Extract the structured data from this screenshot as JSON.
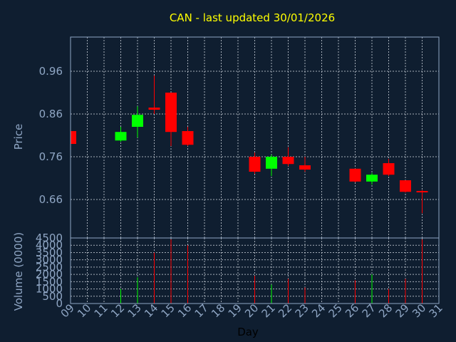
{
  "chart_data": [
    {
      "type": "candlestick",
      "title": "CAN - last updated 30/01/2026",
      "ylabel": "Price",
      "ylim": [
        0.57,
        1.04
      ],
      "yticks": [
        0.66,
        0.76,
        0.86,
        0.96
      ],
      "ytick_labels": [
        "0.66",
        "0.76",
        "0.86",
        "0.96"
      ],
      "grid": true,
      "colors": {
        "background": "#0f1e30",
        "title": "#ffff00",
        "axis": "#8fa6c4",
        "up": "#00ff00",
        "down": "#ff0000"
      },
      "candles": [
        {
          "day": 9,
          "open": 0.82,
          "close": 0.79,
          "high": 0.82,
          "low": 0.79
        },
        {
          "day": 12,
          "open": 0.798,
          "close": 0.818,
          "high": 0.83,
          "low": 0.795
        },
        {
          "day": 13,
          "open": 0.83,
          "close": 0.858,
          "high": 0.878,
          "low": 0.805
        },
        {
          "day": 14,
          "open": 0.875,
          "close": 0.87,
          "high": 0.95,
          "low": 0.86
        },
        {
          "day": 15,
          "open": 0.91,
          "close": 0.818,
          "high": 0.91,
          "low": 0.785
        },
        {
          "day": 16,
          "open": 0.82,
          "close": 0.788,
          "high": 0.83,
          "low": 0.785
        },
        {
          "day": 20,
          "open": 0.76,
          "close": 0.725,
          "high": 0.77,
          "low": 0.72
        },
        {
          "day": 21,
          "open": 0.732,
          "close": 0.76,
          "high": 0.765,
          "low": 0.715
        },
        {
          "day": 22,
          "open": 0.76,
          "close": 0.743,
          "high": 0.782,
          "low": 0.738
        },
        {
          "day": 23,
          "open": 0.74,
          "close": 0.73,
          "high": 0.76,
          "low": 0.725
        },
        {
          "day": 26,
          "open": 0.732,
          "close": 0.702,
          "high": 0.732,
          "low": 0.7
        },
        {
          "day": 27,
          "open": 0.702,
          "close": 0.718,
          "high": 0.722,
          "low": 0.695
        },
        {
          "day": 28,
          "open": 0.745,
          "close": 0.718,
          "high": 0.755,
          "low": 0.715
        },
        {
          "day": 29,
          "open": 0.705,
          "close": 0.678,
          "high": 0.705,
          "low": 0.676
        },
        {
          "day": 30,
          "open": 0.68,
          "close": 0.677,
          "high": 0.682,
          "low": 0.628
        }
      ]
    },
    {
      "type": "bar",
      "ylabel": "Volume (0000)",
      "ylim": [
        0,
        4500
      ],
      "yticks": [
        0,
        500,
        1000,
        1500,
        2000,
        2500,
        3000,
        3500,
        4000,
        4500
      ],
      "ytick_labels": [
        "0",
        "500",
        "1000",
        "1500",
        "2000",
        "2500",
        "3000",
        "3500",
        "4000",
        "4500"
      ],
      "xlabel": "Day",
      "xlim": [
        9,
        31
      ],
      "xtick_labels": [
        "09",
        "10",
        "11",
        "12",
        "13",
        "14",
        "15",
        "16",
        "17",
        "18",
        "19",
        "20",
        "21",
        "22",
        "23",
        "24",
        "25",
        "26",
        "27",
        "28",
        "29",
        "30",
        "31"
      ],
      "grid": true,
      "bars": [
        {
          "day": 12,
          "value": 1000,
          "direction": "up"
        },
        {
          "day": 13,
          "value": 1800,
          "direction": "up"
        },
        {
          "day": 14,
          "value": 3500,
          "direction": "down"
        },
        {
          "day": 15,
          "value": 4400,
          "direction": "down"
        },
        {
          "day": 16,
          "value": 4000,
          "direction": "down"
        },
        {
          "day": 20,
          "value": 1900,
          "direction": "down"
        },
        {
          "day": 21,
          "value": 1300,
          "direction": "up"
        },
        {
          "day": 22,
          "value": 1700,
          "direction": "down"
        },
        {
          "day": 23,
          "value": 1100,
          "direction": "down"
        },
        {
          "day": 26,
          "value": 1600,
          "direction": "down"
        },
        {
          "day": 27,
          "value": 2000,
          "direction": "up"
        },
        {
          "day": 28,
          "value": 1000,
          "direction": "down"
        },
        {
          "day": 29,
          "value": 1700,
          "direction": "down"
        },
        {
          "day": 30,
          "value": 4400,
          "direction": "down"
        }
      ]
    }
  ]
}
